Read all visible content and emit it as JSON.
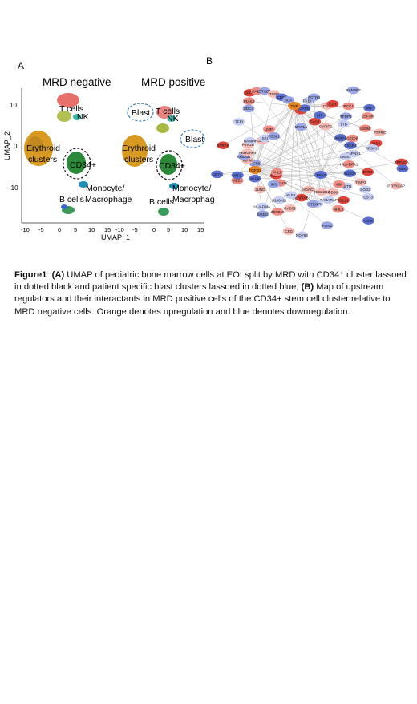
{
  "panel_a": {
    "label": "A",
    "titles": [
      "MRD negative",
      "MRD positive"
    ],
    "xlabel": "UMAP_1",
    "ylabel": "UMAP_2",
    "x_ticks": [
      "-10",
      "-5",
      "0",
      "5",
      "10",
      "15"
    ],
    "y_ticks": [
      "10",
      "0",
      "-10"
    ],
    "cluster_labels_left": [
      "T cells",
      "NK",
      "Erythroid clusters",
      "CD34+",
      "Monocyte/ Macrophage",
      "B cells"
    ],
    "cluster_labels_right": [
      "Blast",
      "T cells",
      "NK",
      "Blast",
      "Erythroid clusters",
      "CD34+",
      "Monocyte/ Macrophage",
      "B cells"
    ]
  },
  "panel_b": {
    "label": "B",
    "hub_nodes": [
      "TGFB1",
      "TP53",
      "TNF"
    ],
    "nodes": [
      "FKBP5",
      "ACTN4",
      "CAST",
      "KIT",
      "CPD",
      "EZR",
      "CYFIP2",
      "RANBP2",
      "RCC1",
      "TFDP1",
      "LTB",
      "MIF",
      "CSF3R",
      "ANXA1",
      "LSM4",
      "GTF2B",
      "PTPRC",
      "CXCR4",
      "IRS2",
      "RPS4Y1",
      "CAPNS1",
      "LIMS1",
      "PPP3CA",
      "SLK",
      "HLA-DPA1",
      "BTG2",
      "PTPRCAP",
      "ALDOA",
      "TIMP2",
      "SOD2",
      "CST3",
      "RETN",
      "VIM",
      "VSIR",
      "IGLL1",
      "CD38",
      "NFIL3",
      "GABARAP",
      "TSC22D3",
      "PLIN2",
      "IL18R1",
      "STEN",
      "HDAC2",
      "NDP52",
      "SERPINB1",
      "CFD",
      "RAB31",
      "KLF6",
      "ZBTB16",
      "S100A11",
      "EREG",
      "HLA-DMA",
      "CDKN1A",
      "ID3",
      "JUND",
      "MLXIP",
      "FHL1",
      "KLF9",
      "MZB1",
      "IRF1",
      "CD74",
      "ACTB",
      "IGHM",
      "ARID1B",
      "ARHGAP4",
      "STRAP",
      "PTK2B",
      "NAMPT",
      "FCER1G",
      "SKI",
      "TFPI",
      "FOSL1",
      "JUP",
      "SDC4",
      "IRAK3",
      "SFPQ",
      "DAB2",
      "OTUD1",
      "ITGB3",
      "CD55",
      "ADA",
      "MAP1A",
      "SFT",
      "CAPG"
    ],
    "legend": [
      "Orange = upregulation",
      "Blue = downregulation"
    ]
  },
  "caption": {
    "fig_label": "Figure1",
    "a_label": "(A)",
    "a_text": " UMAP of pediatric bone marrow cells at EOI  split by MRD with  CD34⁺ cluster lassoed in dotted black and patient specific blast clusters lassoed in dotted blue;",
    "b_label": "(B)",
    "b_text": " Map of upstream regulators and their interactants in MRD positive cells of the CD34+ stem cell cluster relative to MRD negative cells. Orange denotes upregulation and blue denotes downregulation."
  },
  "colors": {
    "t_cells": "#e8706a",
    "nk": "#33b8a8",
    "erythroid": "#d99a22",
    "cd34": "#2a8a3a",
    "mono": "#1e8fb4",
    "b_cells": "#3a9a5a",
    "blast_ring": "#3a7fc4",
    "up": "#e0443a",
    "down": "#5a6fd0",
    "hub": "#e8821e"
  }
}
